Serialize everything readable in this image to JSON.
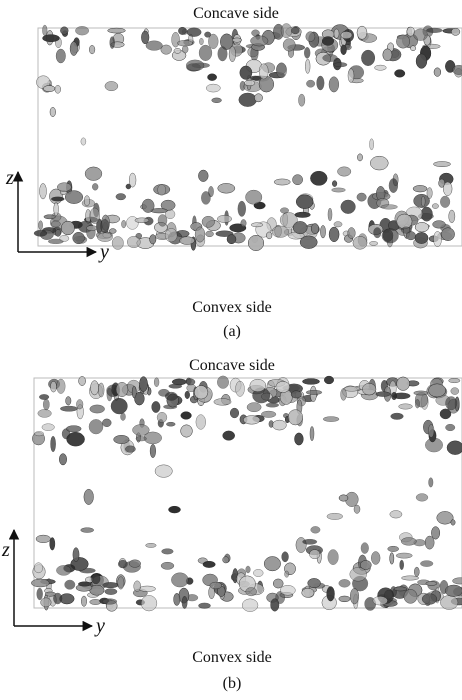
{
  "panels": [
    {
      "top_label": "Concave side",
      "bottom_label": "Convex side",
      "caption": "(a)",
      "z_axis_label": "z",
      "y_axis_label": "y"
    },
    {
      "top_label": "Concave side",
      "bottom_label": "Convex side",
      "caption": "(b)",
      "z_axis_label": "z",
      "y_axis_label": "y"
    }
  ]
}
